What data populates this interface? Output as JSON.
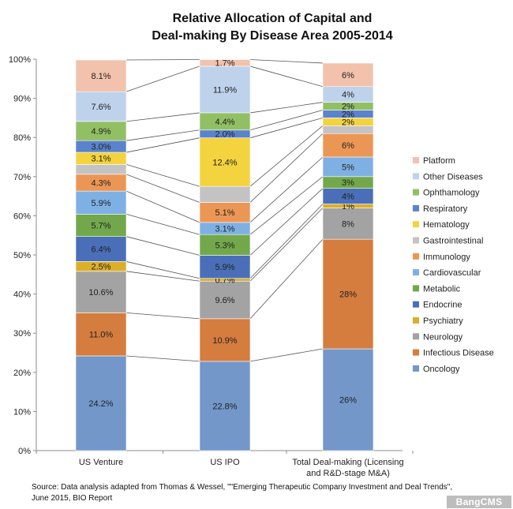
{
  "chart_data": {
    "type": "bar",
    "stacked": true,
    "percent": true,
    "title_line1": "Relative Allocation of Capital and",
    "title_line2": "Deal-making By Disease Area 2005-2014",
    "categories": [
      "US Venture",
      "US IPO",
      "Total Deal-making (Licensing and R&D-stage M&A)"
    ],
    "category_label_lines": [
      [
        "US Venture"
      ],
      [
        "US IPO"
      ],
      [
        "Total Deal-making (Licensing",
        "and R&D-stage M&A)"
      ]
    ],
    "ylim": [
      0,
      100
    ],
    "yticks": [
      "0%",
      "10%",
      "20%",
      "30%",
      "40%",
      "50%",
      "60%",
      "70%",
      "80%",
      "90%",
      "100%"
    ],
    "legend_position": "right",
    "connector_lines": true,
    "series": [
      {
        "name": "Oncology",
        "color": "#7397c9",
        "values": [
          24.2,
          22.8,
          26
        ],
        "labels": [
          "24.2%",
          "22.8%",
          "26%"
        ]
      },
      {
        "name": "Infectious Disease",
        "color": "#d57c3f",
        "values": [
          11.0,
          10.9,
          28
        ],
        "labels": [
          "11.0%",
          "10.9%",
          "28%"
        ]
      },
      {
        "name": "Neurology",
        "color": "#a3a3a3",
        "values": [
          10.6,
          9.6,
          8
        ],
        "labels": [
          "10.6%",
          "9.6%",
          "8%"
        ]
      },
      {
        "name": "Psychiatry",
        "color": "#dcaf2a",
        "values": [
          2.5,
          0.7,
          1
        ],
        "labels": [
          "2.5%",
          "0.7%",
          "1%"
        ]
      },
      {
        "name": "Endocrine",
        "color": "#4a6fb8",
        "values": [
          6.4,
          5.9,
          4
        ],
        "labels": [
          "6.4%",
          "5.9%",
          "4%"
        ]
      },
      {
        "name": "Metabolic",
        "color": "#72a84b",
        "values": [
          5.7,
          5.3,
          3
        ],
        "labels": [
          "5.7%",
          "5.3%",
          "3%"
        ]
      },
      {
        "name": "Cardiovascular",
        "color": "#7fb0e4",
        "values": [
          5.9,
          3.1,
          5
        ],
        "labels": [
          "5.9%",
          "3.1%",
          "5%"
        ]
      },
      {
        "name": "Immunology",
        "color": "#ec9655",
        "values": [
          4.3,
          5.1,
          6
        ],
        "labels": [
          "4.3%",
          "5.1%",
          "6%"
        ]
      },
      {
        "name": "Gastrointestinal",
        "color": "#c3c3c3",
        "values": [
          2.5,
          4.1,
          2
        ],
        "labels": [
          "",
          "",
          ""
        ]
      },
      {
        "name": "Hematology",
        "color": "#f3d33e",
        "values": [
          3.1,
          12.4,
          2
        ],
        "labels": [
          "3.1%",
          "12.4%",
          "2%"
        ]
      },
      {
        "name": "Respiratory",
        "color": "#5b83cc",
        "values": [
          3.0,
          2.0,
          2
        ],
        "labels": [
          "3.0%",
          "2.0%",
          "2%"
        ]
      },
      {
        "name": "Ophthamology",
        "color": "#91c064",
        "values": [
          4.9,
          4.4,
          2
        ],
        "labels": [
          "4.9%",
          "4.4%",
          "2%"
        ]
      },
      {
        "name": "Other Diseases",
        "color": "#bfd2ec",
        "values": [
          7.6,
          11.9,
          4
        ],
        "labels": [
          "7.6%",
          "11.9%",
          "4%"
        ]
      },
      {
        "name": "Platform",
        "color": "#f2c2ac",
        "values": [
          8.1,
          1.7,
          6
        ],
        "labels": [
          "8.1%",
          "1.7%",
          "6%"
        ]
      }
    ]
  },
  "source_note": "Source: Data analysis adapted from Thomas & Wessel, \"\"Emerging Therapeutic Company Investment and Deal Trends\", June 2015, BIO Report",
  "watermark": "BangCMS"
}
